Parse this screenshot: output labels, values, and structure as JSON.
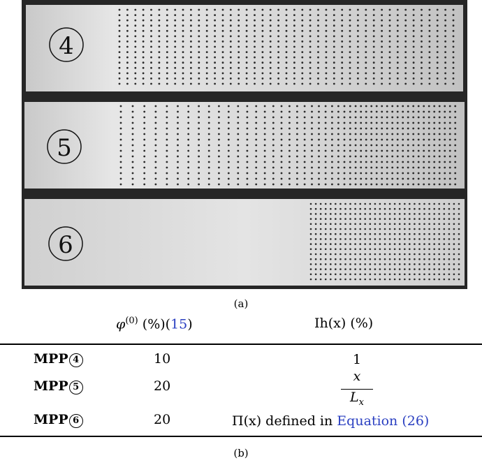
{
  "figure": {
    "panel_a": {
      "caption": "(a)",
      "samples": [
        {
          "number": "4"
        },
        {
          "number": "5"
        },
        {
          "number": "6"
        }
      ]
    },
    "panel_b": {
      "caption": "(b)",
      "columns": {
        "phi_symbol": "φ",
        "phi_superscript": "(0)",
        "phi_unit": "(%)",
        "phi_ref_open": "(",
        "phi_ref": "15",
        "phi_ref_close": ")",
        "ih_func": "Ih(x)",
        "ih_unit": "(%)"
      },
      "rows": [
        {
          "label": "MPP",
          "num": "4",
          "phi": "10"
        },
        {
          "label": "MPP",
          "num": "5",
          "phi": "20"
        },
        {
          "label": "MPP",
          "num": "6",
          "phi": "20"
        }
      ],
      "ih_values": {
        "row1": "1",
        "row2_numerator": "x",
        "row2_denominator": "L",
        "row2_denominator_sub": "x",
        "row3_func": "Π(x)",
        "row3_text": "defined in",
        "row3_ref": "Equation (26)"
      }
    }
  }
}
